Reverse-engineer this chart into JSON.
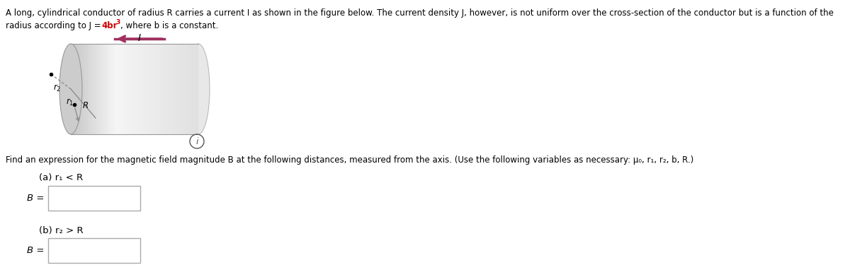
{
  "title_line1": "A long, cylindrical conductor of radius R carries a current I as shown in the figure below. The current density J, however, is not uniform over the cross-section of the conductor but is a function of the",
  "title_line2_pre": "radius according to J = ",
  "title_line2_formula": "4br",
  "title_line2_exp": "3",
  "title_line2_post": ", where b is a constant.",
  "find_text": "Find an expression for the magnetic field magnitude B at the following distances, measured from the axis. (Use the following variables as necessary: μ₀, r₁, r₂, b, R.)",
  "part_a_label": "(a) r₁ < R",
  "part_a_B": "B =",
  "part_b_label": "(b) r₂ > R",
  "part_b_B": "B =",
  "bg_color": "#ffffff",
  "text_color": "#000000",
  "formula_color": "#cc0000",
  "arrow_color": "#9e3060",
  "dashed_color": "#888888",
  "box_edge_color": "#aaaaaa"
}
